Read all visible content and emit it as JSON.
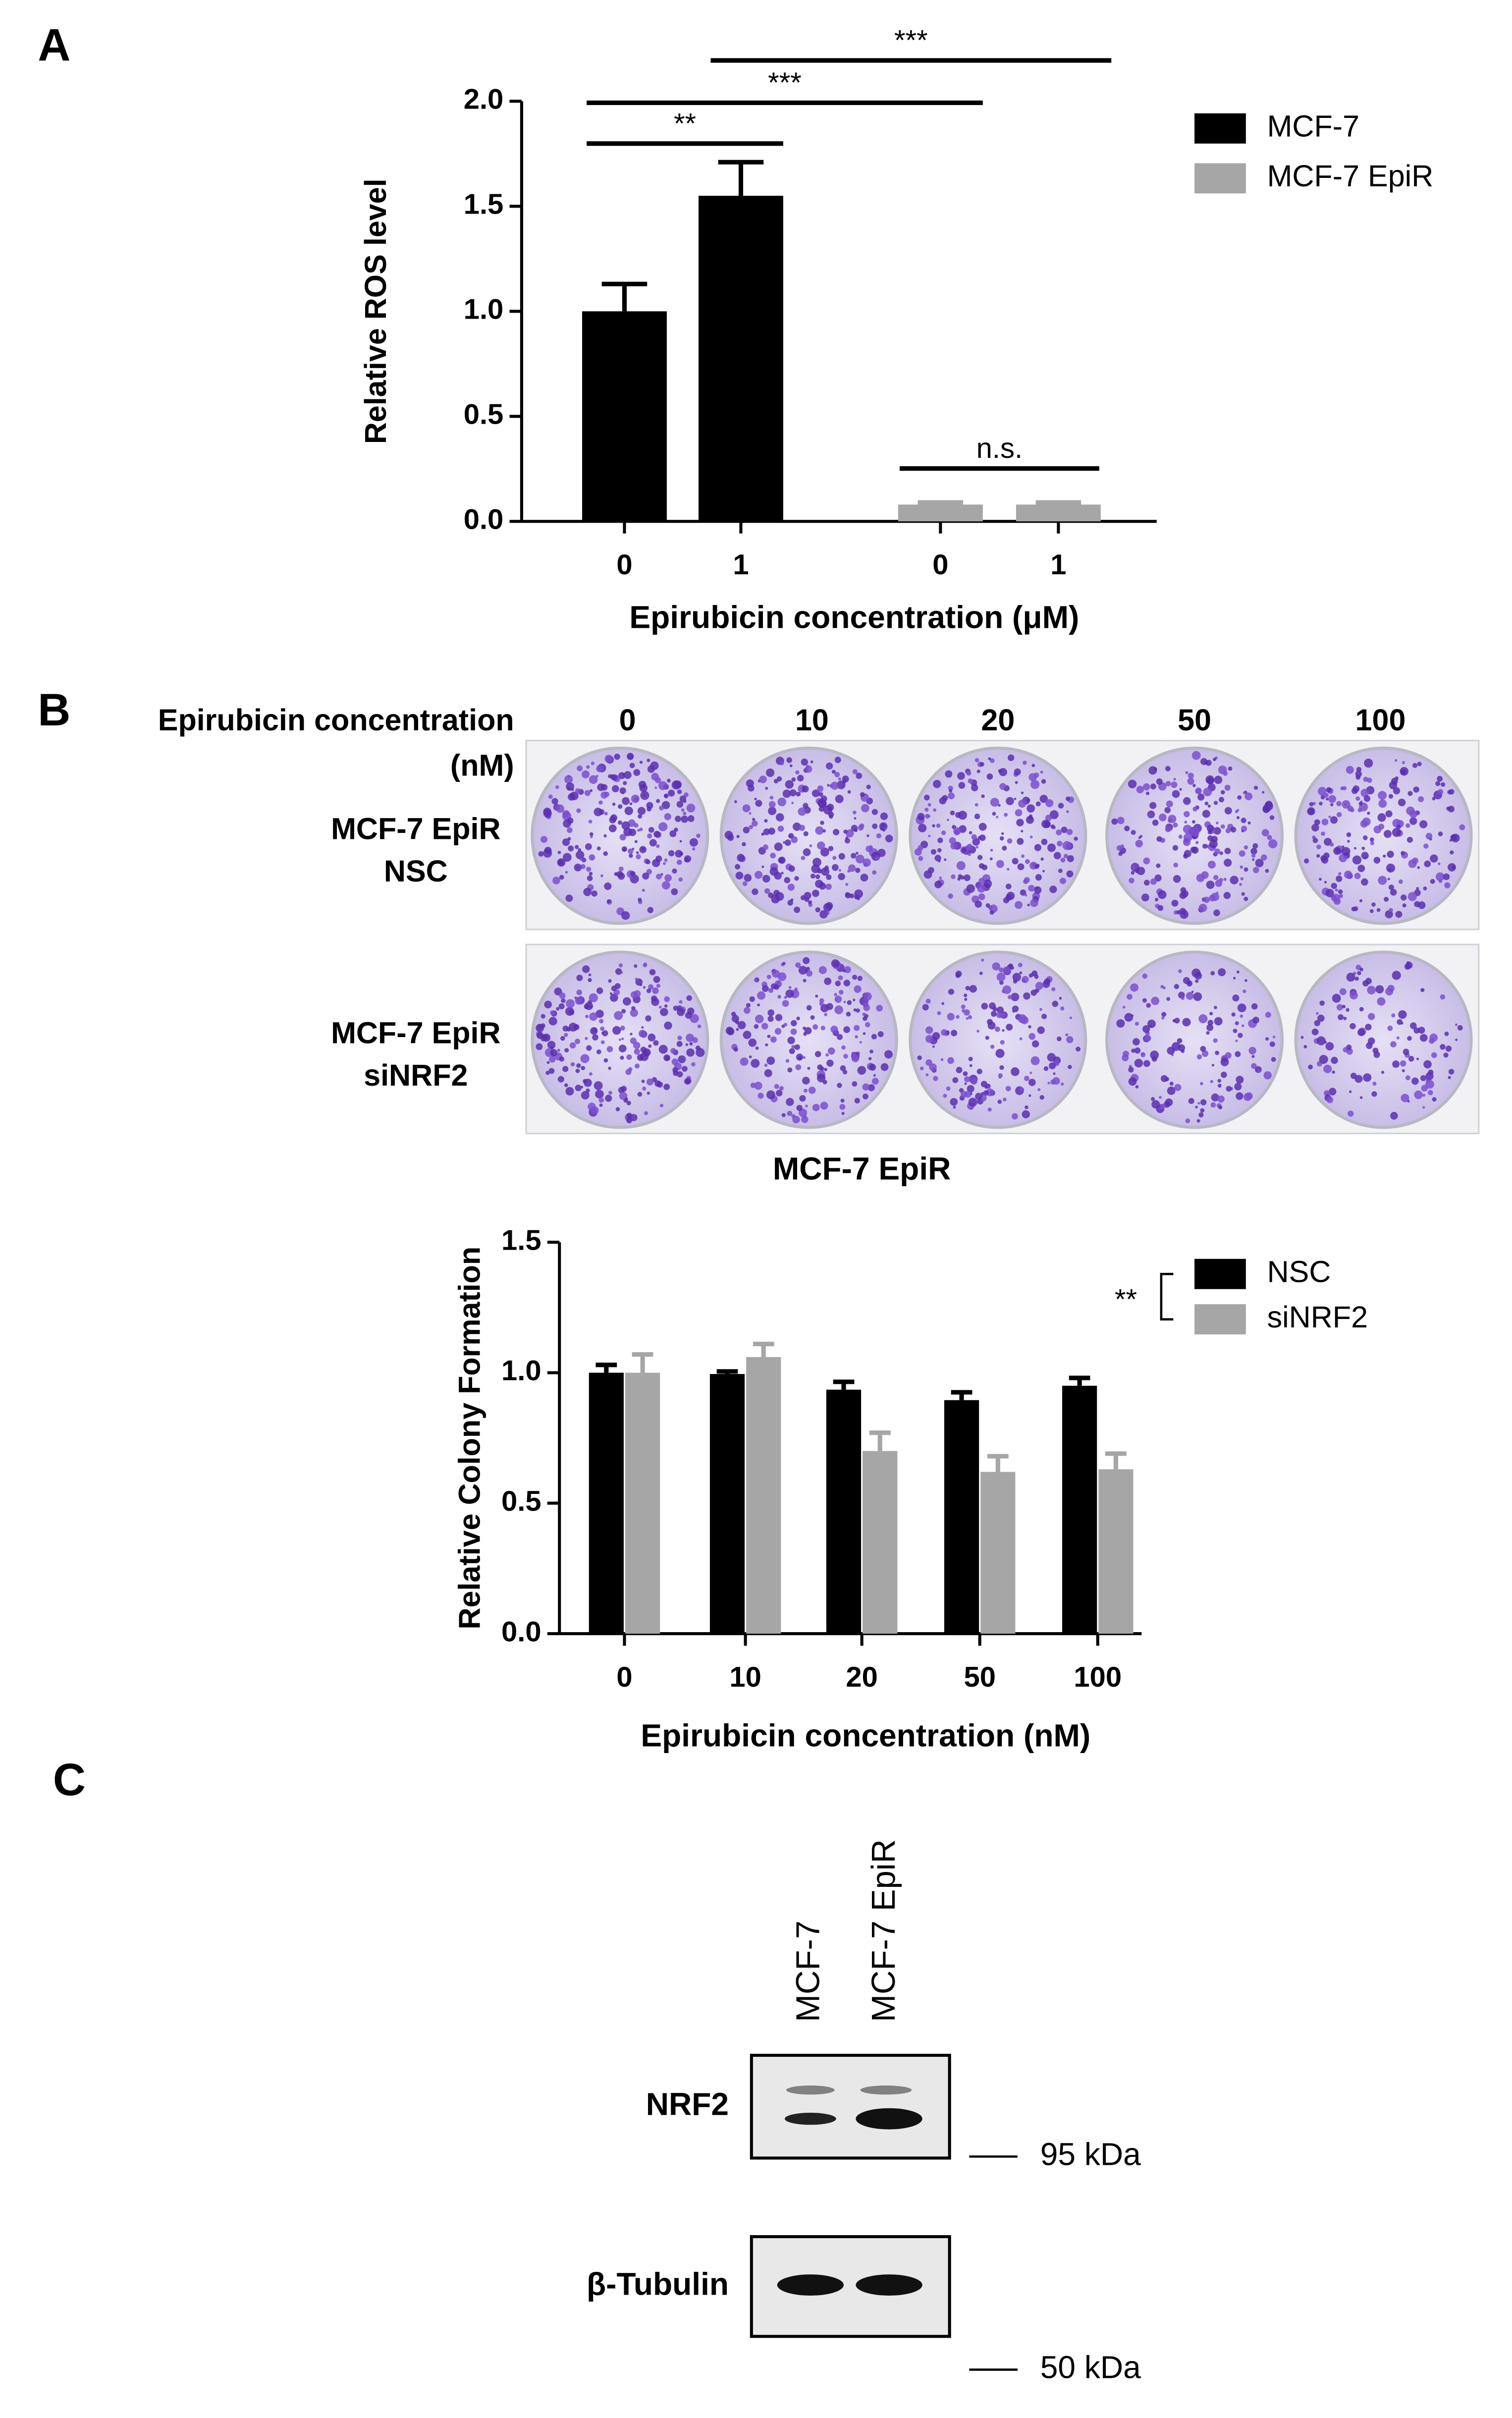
{
  "panels": [
    "A",
    "B",
    "C"
  ],
  "chart_data": [
    {
      "type": "bar",
      "x_label": "Epirubicin concentration (μM)",
      "y_label": "Relative ROS level",
      "categories": [
        "0",
        "1",
        "0",
        "1"
      ],
      "series": [
        {
          "name": "MCF-7",
          "color": "#000000",
          "values": [
            1.0,
            1.55,
            null,
            null
          ],
          "errors": [
            0.13,
            0.16,
            null,
            null
          ]
        },
        {
          "name": "MCF-7 EpiR",
          "color": "#a6a6a6",
          "values": [
            null,
            null,
            0.08,
            0.08
          ],
          "errors": [
            null,
            null,
            0.01,
            0.01
          ]
        }
      ],
      "ylim": [
        0,
        2
      ],
      "yticks": [
        {
          "value": 0,
          "label": "0.0"
        },
        0.5,
        {
          "value": 1,
          "label": "1.0"
        },
        1.5,
        {
          "value": 2,
          "label": "2.0"
        }
      ],
      "annotations": [
        "**",
        "***",
        "***",
        "n.s."
      ],
      "legend": "upper right"
    },
    {
      "type": "bar",
      "title": "MCF-7 EpiR",
      "x_label": "Epirubicin concentration (nM)",
      "y_label": "Relative Colony Formation",
      "categories": [
        "0",
        "10",
        "20",
        "50",
        "100"
      ],
      "series": [
        {
          "name": "NSC",
          "color": "#000000",
          "values": [
            1.0,
            0.995,
            0.935,
            0.895,
            0.95
          ],
          "errors": [
            0.03,
            0.01,
            0.03,
            0.03,
            0.03
          ]
        },
        {
          "name": "siNRF2",
          "color": "#a6a6a6",
          "values": [
            1.0,
            1.06,
            0.7,
            0.62,
            0.63
          ],
          "errors": [
            0.07,
            0.05,
            0.07,
            0.06,
            0.06
          ]
        }
      ],
      "ylim": [
        0,
        1.5
      ],
      "yticks": [
        {
          "value": 0,
          "label": "0.0"
        },
        0.5,
        {
          "value": 1,
          "label": "1.0"
        },
        1.5
      ],
      "annotations": [
        "**"
      ],
      "legend": "upper right"
    }
  ],
  "plates": {
    "header": [
      "Epirubicin concentration",
      "(nM)"
    ],
    "concentrations": [
      "0",
      "10",
      "20",
      "50",
      "100"
    ],
    "rows": [
      [
        "MCF-7 EpiR",
        "NSC"
      ],
      [
        "MCF-7 EpiR",
        "siNRF2"
      ]
    ]
  },
  "blot": {
    "lanes": [
      "MCF-7",
      "MCF-7 EpiR"
    ],
    "bands": [
      "NRF2",
      "β-Tubulin"
    ],
    "markers": [
      "95 kDa",
      "50 kDa"
    ]
  }
}
